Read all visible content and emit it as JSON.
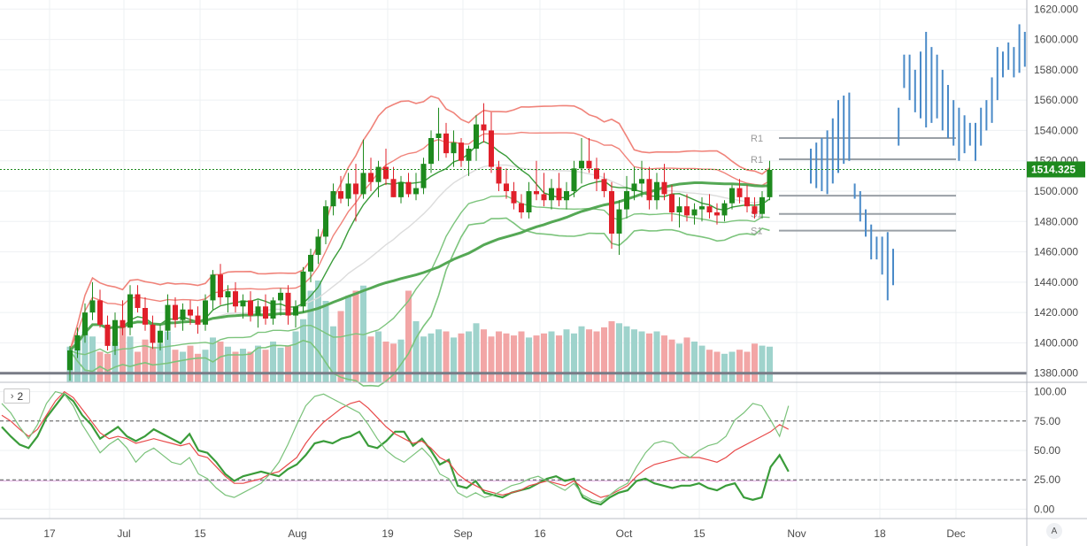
{
  "chart_data": {
    "type": "candlestick",
    "price_axis": {
      "ticks": [
        "1620.000",
        "1600.000",
        "1580.000",
        "1560.000",
        "1540.000",
        "1520.000",
        "1500.000",
        "1480.000",
        "1460.000",
        "1440.000",
        "1420.000",
        "1400.000",
        "1380.000"
      ],
      "range": [
        1374,
        1626
      ]
    },
    "last_price": "1514.325",
    "time_axis": {
      "ticks": [
        "17",
        "Jul",
        "15",
        "Aug",
        "19",
        "Sep",
        "16",
        "Oct",
        "15",
        "Nov",
        "18",
        "Dec"
      ]
    },
    "candles_ohlc": [
      [
        1382,
        1398,
        1375,
        1395
      ],
      [
        1395,
        1410,
        1390,
        1405
      ],
      [
        1405,
        1426,
        1400,
        1420
      ],
      [
        1420,
        1440,
        1415,
        1428
      ],
      [
        1428,
        1435,
        1410,
        1412
      ],
      [
        1412,
        1418,
        1395,
        1398
      ],
      [
        1398,
        1420,
        1392,
        1415
      ],
      [
        1415,
        1428,
        1405,
        1410
      ],
      [
        1410,
        1438,
        1405,
        1432
      ],
      [
        1432,
        1438,
        1420,
        1423
      ],
      [
        1423,
        1430,
        1408,
        1412
      ],
      [
        1412,
        1418,
        1396,
        1400
      ],
      [
        1400,
        1412,
        1395,
        1408
      ],
      [
        1408,
        1432,
        1402,
        1425
      ],
      [
        1425,
        1430,
        1410,
        1415
      ],
      [
        1415,
        1426,
        1408,
        1422
      ],
      [
        1422,
        1428,
        1412,
        1418
      ],
      [
        1418,
        1424,
        1406,
        1412
      ],
      [
        1412,
        1432,
        1408,
        1428
      ],
      [
        1428,
        1448,
        1422,
        1445
      ],
      [
        1445,
        1452,
        1425,
        1430
      ],
      [
        1430,
        1438,
        1420,
        1434
      ],
      [
        1434,
        1440,
        1420,
        1424
      ],
      [
        1424,
        1432,
        1416,
        1428
      ],
      [
        1428,
        1434,
        1414,
        1418
      ],
      [
        1418,
        1428,
        1410,
        1424
      ],
      [
        1424,
        1432,
        1412,
        1416
      ],
      [
        1416,
        1430,
        1412,
        1428
      ],
      [
        1428,
        1436,
        1418,
        1433
      ],
      [
        1433,
        1438,
        1412,
        1418
      ],
      [
        1418,
        1428,
        1410,
        1424
      ],
      [
        1424,
        1450,
        1420,
        1447
      ],
      [
        1447,
        1462,
        1440,
        1458
      ],
      [
        1458,
        1475,
        1452,
        1470
      ],
      [
        1470,
        1494,
        1465,
        1490
      ],
      [
        1490,
        1505,
        1484,
        1500
      ],
      [
        1500,
        1510,
        1492,
        1495
      ],
      [
        1495,
        1512,
        1490,
        1505
      ],
      [
        1505,
        1518,
        1480,
        1498
      ],
      [
        1498,
        1534,
        1495,
        1512
      ],
      [
        1512,
        1522,
        1500,
        1506
      ],
      [
        1506,
        1520,
        1496,
        1516
      ],
      [
        1516,
        1528,
        1504,
        1508
      ],
      [
        1508,
        1516,
        1496,
        1496
      ],
      [
        1496,
        1510,
        1492,
        1506
      ],
      [
        1506,
        1512,
        1496,
        1498
      ],
      [
        1498,
        1512,
        1494,
        1502
      ],
      [
        1502,
        1522,
        1498,
        1518
      ],
      [
        1518,
        1540,
        1512,
        1535
      ],
      [
        1535,
        1555,
        1520,
        1538
      ],
      [
        1538,
        1545,
        1522,
        1525
      ],
      [
        1525,
        1540,
        1516,
        1532
      ],
      [
        1532,
        1535,
        1516,
        1520
      ],
      [
        1520,
        1530,
        1510,
        1528
      ],
      [
        1528,
        1550,
        1520,
        1544
      ],
      [
        1544,
        1558,
        1532,
        1540
      ],
      [
        1540,
        1552,
        1512,
        1516
      ],
      [
        1516,
        1520,
        1500,
        1505
      ],
      [
        1505,
        1515,
        1495,
        1500
      ],
      [
        1500,
        1506,
        1488,
        1492
      ],
      [
        1492,
        1498,
        1482,
        1486
      ],
      [
        1486,
        1506,
        1482,
        1500
      ],
      [
        1500,
        1520,
        1494,
        1498
      ],
      [
        1498,
        1512,
        1490,
        1494
      ],
      [
        1494,
        1508,
        1488,
        1502
      ],
      [
        1502,
        1512,
        1490,
        1494
      ],
      [
        1494,
        1506,
        1488,
        1500
      ],
      [
        1500,
        1520,
        1496,
        1515
      ],
      [
        1515,
        1535,
        1505,
        1520
      ],
      [
        1520,
        1535,
        1512,
        1515
      ],
      [
        1515,
        1522,
        1500,
        1508
      ],
      [
        1508,
        1512,
        1496,
        1500
      ],
      [
        1500,
        1506,
        1462,
        1472
      ],
      [
        1472,
        1494,
        1458,
        1488
      ],
      [
        1488,
        1510,
        1482,
        1500
      ],
      [
        1500,
        1516,
        1494,
        1505
      ],
      [
        1505,
        1520,
        1496,
        1508
      ],
      [
        1508,
        1516,
        1488,
        1494
      ],
      [
        1494,
        1512,
        1488,
        1506
      ],
      [
        1506,
        1518,
        1494,
        1498
      ],
      [
        1498,
        1504,
        1480,
        1486
      ],
      [
        1486,
        1496,
        1476,
        1490
      ],
      [
        1490,
        1498,
        1480,
        1484
      ],
      [
        1484,
        1492,
        1478,
        1488
      ],
      [
        1488,
        1496,
        1480,
        1490
      ],
      [
        1490,
        1498,
        1482,
        1486
      ],
      [
        1486,
        1492,
        1478,
        1484
      ],
      [
        1484,
        1494,
        1480,
        1492
      ],
      [
        1492,
        1504,
        1488,
        1502
      ],
      [
        1502,
        1508,
        1492,
        1496
      ],
      [
        1496,
        1504,
        1486,
        1490
      ],
      [
        1490,
        1496,
        1482,
        1485
      ],
      [
        1485,
        1500,
        1482,
        1496
      ],
      [
        1496,
        1520,
        1494,
        1514
      ]
    ],
    "volume_relative": [
      0.35,
      0.4,
      0.5,
      0.45,
      0.3,
      0.28,
      0.4,
      0.55,
      0.45,
      0.3,
      0.42,
      0.35,
      0.38,
      0.5,
      0.32,
      0.3,
      0.36,
      0.28,
      0.32,
      0.44,
      0.4,
      0.35,
      0.3,
      0.33,
      0.3,
      0.36,
      0.32,
      0.4,
      0.34,
      0.36,
      0.5,
      0.62,
      0.9,
      1.0,
      0.8,
      0.55,
      0.7,
      0.85,
      0.9,
      0.95,
      0.45,
      0.5,
      0.4,
      0.38,
      0.42,
      0.9,
      0.6,
      0.45,
      0.48,
      0.52,
      0.5,
      0.44,
      0.48,
      0.5,
      0.58,
      0.52,
      0.45,
      0.5,
      0.48,
      0.46,
      0.5,
      0.44,
      0.46,
      0.48,
      0.5,
      0.46,
      0.52,
      0.48,
      0.55,
      0.52,
      0.5,
      0.54,
      0.6,
      0.58,
      0.55,
      0.52,
      0.5,
      0.48,
      0.5,
      0.46,
      0.42,
      0.38,
      0.44,
      0.4,
      0.36,
      0.32,
      0.3,
      0.28,
      0.3,
      0.32,
      0.3,
      0.38,
      0.36,
      0.35,
      0.36
    ],
    "levels": [
      {
        "label": "R1",
        "value": 1535,
        "color": "#9aa0a6"
      },
      {
        "label": "R1",
        "value": 1521,
        "color": "#9aa0a6"
      },
      {
        "label": "",
        "value": 1497,
        "color": "#9aa0a6"
      },
      {
        "label": "S1",
        "value": 1485,
        "color": "#9aa0a6"
      },
      {
        "label": "S1",
        "value": 1474,
        "color": "#9aa0a6"
      },
      {
        "label": "",
        "value": 1380,
        "color": "#787b86"
      }
    ],
    "projection_bars": [
      [
        1505,
        1528
      ],
      [
        1502,
        1532
      ],
      [
        1500,
        1535
      ],
      [
        1498,
        1540
      ],
      [
        1505,
        1548
      ],
      [
        1512,
        1560
      ],
      [
        1518,
        1563
      ],
      [
        1520,
        1565
      ],
      [
        1495,
        1505
      ],
      [
        1480,
        1500
      ],
      [
        1470,
        1488
      ],
      [
        1455,
        1478
      ],
      [
        1455,
        1470
      ],
      [
        1445,
        1470
      ],
      [
        1428,
        1473
      ],
      [
        1438,
        1462
      ],
      [
        1530,
        1555
      ],
      [
        1568,
        1590
      ],
      [
        1560,
        1590
      ],
      [
        1552,
        1580
      ],
      [
        1548,
        1592
      ],
      [
        1542,
        1605
      ],
      [
        1545,
        1595
      ],
      [
        1548,
        1590
      ],
      [
        1540,
        1580
      ],
      [
        1535,
        1570
      ],
      [
        1530,
        1560
      ],
      [
        1520,
        1555
      ],
      [
        1525,
        1550
      ],
      [
        1530,
        1545
      ],
      [
        1520,
        1545
      ],
      [
        1530,
        1555
      ],
      [
        1540,
        1560
      ],
      [
        1545,
        1575
      ],
      [
        1560,
        1595
      ],
      [
        1575,
        1592
      ],
      [
        1580,
        1598
      ],
      [
        1575,
        1595
      ],
      [
        1578,
        1610
      ],
      [
        1582,
        1605
      ]
    ],
    "oscillator": {
      "ticks": [
        "100.00",
        "75.00",
        "50.00",
        "25.00",
        "0.00"
      ],
      "range": [
        -8,
        108
      ],
      "levels": [
        75,
        25
      ],
      "series": [
        {
          "name": "",
          "color": "#3a9c3a",
          "values": [
            70,
            62,
            55,
            52,
            62,
            78,
            88,
            98,
            92,
            80,
            72,
            60,
            65,
            70,
            62,
            58,
            62,
            68,
            64,
            60,
            56,
            64,
            50,
            48,
            40,
            30,
            24,
            28,
            30,
            32,
            30,
            28,
            34,
            38,
            46,
            56,
            58,
            56,
            60,
            62,
            66,
            54,
            52,
            58,
            66,
            66,
            54,
            60,
            50,
            38,
            42,
            20,
            18,
            24,
            14,
            12,
            10,
            14,
            16,
            18,
            22,
            26,
            28,
            24,
            26,
            10,
            6,
            4,
            10,
            14,
            16,
            24,
            26,
            22,
            20,
            18,
            20,
            20,
            22,
            18,
            16,
            20,
            22,
            10,
            8,
            10,
            36,
            46,
            32
          ]
        },
        {
          "name": "",
          "color": "#e84a4a",
          "values": [
            80,
            75,
            68,
            62,
            68,
            80,
            92,
            100,
            95,
            85,
            75,
            65,
            60,
            62,
            60,
            56,
            58,
            60,
            58,
            56,
            54,
            56,
            46,
            44,
            36,
            28,
            22,
            22,
            24,
            26,
            30,
            32,
            38,
            44,
            56,
            66,
            74,
            80,
            86,
            90,
            92,
            86,
            78,
            70,
            64,
            60,
            56,
            58,
            52,
            44,
            40,
            30,
            24,
            20,
            16,
            14,
            12,
            14,
            16,
            20,
            22,
            24,
            22,
            20,
            24,
            18,
            14,
            10,
            12,
            16,
            20,
            28,
            34,
            38,
            40,
            42,
            44,
            44,
            44,
            42,
            40,
            44,
            50,
            54,
            58,
            62,
            66,
            72,
            68
          ]
        },
        {
          "name": "",
          "color": "#7ac27a",
          "values": [
            90,
            82,
            70,
            60,
            72,
            90,
            100,
            98,
            88,
            72,
            60,
            48,
            55,
            60,
            52,
            40,
            48,
            52,
            46,
            40,
            38,
            44,
            30,
            26,
            18,
            12,
            10,
            14,
            18,
            22,
            30,
            40,
            55,
            72,
            88,
            96,
            98,
            94,
            90,
            86,
            82,
            72,
            60,
            50,
            44,
            40,
            46,
            52,
            44,
            30,
            26,
            14,
            10,
            14,
            10,
            12,
            16,
            20,
            22,
            26,
            28,
            24,
            20,
            16,
            22,
            12,
            8,
            6,
            12,
            18,
            22,
            36,
            48,
            56,
            58,
            56,
            48,
            44,
            50,
            54,
            56,
            62,
            76,
            82,
            90,
            88,
            76,
            62,
            88
          ]
        }
      ]
    }
  },
  "ui": {
    "indicator_toggle_label": "2",
    "auto_scale_label": "A"
  }
}
